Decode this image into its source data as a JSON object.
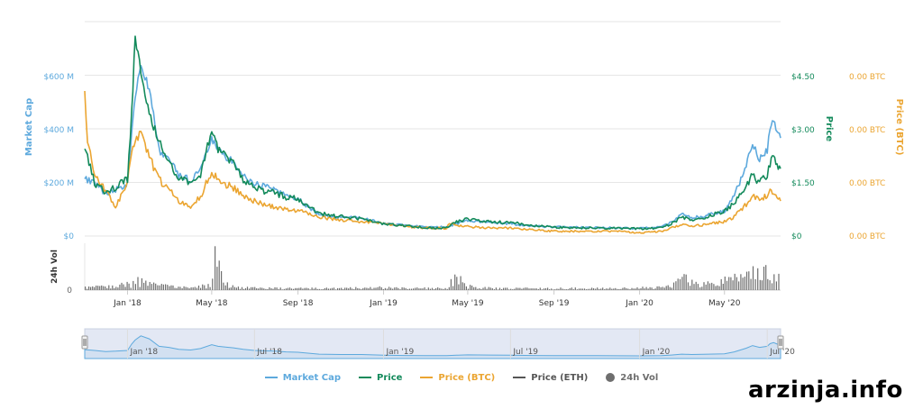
{
  "colors": {
    "market_cap": "#5da9dd",
    "price": "#138a5b",
    "price_btc": "#eba531",
    "price_eth": "#555555",
    "vol": "#6e6e6e",
    "grid": "#e6e6e6",
    "navigator_fill": "#ccd6eb"
  },
  "watermark": "arzinja.info",
  "legend": {
    "market_cap": "Market Cap",
    "price": "Price",
    "price_btc": "Price (BTC)",
    "price_eth": "Price (ETH)",
    "vol": "24h Vol"
  },
  "chart_data": {
    "type": "line",
    "x_range": [
      "2017-11-01",
      "2020-07-20"
    ],
    "x_ticks": [
      "Jan '18",
      "May '18",
      "Sep '18",
      "Jan '19",
      "May '19",
      "Sep '19",
      "Jan '20",
      "May '20"
    ],
    "x_tick_dates": [
      "2018-01-01",
      "2018-05-01",
      "2018-09-01",
      "2019-01-01",
      "2019-05-01",
      "2019-09-01",
      "2020-01-01",
      "2020-05-01"
    ],
    "axes": {
      "market_cap": {
        "label": "Market Cap",
        "range": [
          0,
          700
        ],
        "ticks": [
          0,
          200,
          400,
          600
        ],
        "tick_labels": [
          "$0",
          "$200 M",
          "$400 M",
          "$600 M"
        ]
      },
      "price": {
        "label": "Price",
        "range": [
          0,
          5.25
        ],
        "ticks": [
          0,
          1.5,
          3.0,
          4.5
        ],
        "tick_labels": [
          "$0",
          "$1.50",
          "$3.00",
          "$4.50"
        ]
      },
      "price_btc": {
        "label": "Price (BTC)",
        "tick_labels": [
          "0.00 BTC",
          "0.00 BTC",
          "0.00 BTC",
          "0.00 BTC"
        ]
      },
      "vol": {
        "label": "24h Vol",
        "tick_labels": [
          "0"
        ]
      }
    },
    "navigator_ticks": [
      "Jan '18",
      "Jul '18",
      "Jan '19",
      "Jul '19",
      "Jan '20",
      "Jul '20"
    ],
    "navigator_tick_dates": [
      "2018-01-01",
      "2018-07-01",
      "2019-01-01",
      "2019-07-01",
      "2020-01-01",
      "2020-07-01"
    ],
    "series": [
      {
        "name": "Market Cap",
        "axis": "market_cap",
        "x": [
          "2017-11-01",
          "2017-11-15",
          "2017-12-01",
          "2017-12-15",
          "2018-01-01",
          "2018-01-07",
          "2018-01-12",
          "2018-01-20",
          "2018-02-01",
          "2018-02-15",
          "2018-03-01",
          "2018-03-15",
          "2018-04-01",
          "2018-04-15",
          "2018-05-01",
          "2018-05-10",
          "2018-06-01",
          "2018-06-15",
          "2018-07-01",
          "2018-07-15",
          "2018-08-01",
          "2018-08-15",
          "2018-09-01",
          "2018-10-01",
          "2018-11-01",
          "2018-12-01",
          "2019-01-01",
          "2019-02-01",
          "2019-03-01",
          "2019-04-01",
          "2019-04-15",
          "2019-05-01",
          "2019-06-01",
          "2019-07-01",
          "2019-08-01",
          "2019-09-01",
          "2019-10-01",
          "2019-11-01",
          "2019-12-01",
          "2020-01-01",
          "2020-02-01",
          "2020-02-15",
          "2020-03-01",
          "2020-03-15",
          "2020-04-01",
          "2020-05-01",
          "2020-05-15",
          "2020-06-01",
          "2020-06-10",
          "2020-06-20",
          "2020-07-01",
          "2020-07-05",
          "2020-07-10",
          "2020-07-15",
          "2020-07-20"
        ],
        "values": [
          190,
          170,
          140,
          150,
          170,
          340,
          450,
          560,
          480,
          280,
          250,
          200,
          180,
          220,
          320,
          280,
          240,
          200,
          170,
          160,
          150,
          130,
          120,
          70,
          60,
          60,
          40,
          35,
          30,
          30,
          40,
          50,
          45,
          40,
          33,
          30,
          28,
          28,
          26,
          25,
          30,
          45,
          70,
          60,
          65,
          80,
          130,
          230,
          300,
          250,
          280,
          350,
          380,
          340,
          320
        ]
      },
      {
        "name": "Price",
        "axis": "price",
        "x": [
          "2017-11-01",
          "2017-11-15",
          "2017-12-01",
          "2017-12-15",
          "2018-01-01",
          "2018-01-07",
          "2018-01-12",
          "2018-01-20",
          "2018-02-01",
          "2018-02-15",
          "2018-03-01",
          "2018-03-15",
          "2018-04-01",
          "2018-04-15",
          "2018-05-01",
          "2018-05-10",
          "2018-06-01",
          "2018-06-15",
          "2018-07-01",
          "2018-07-15",
          "2018-08-01",
          "2018-08-15",
          "2018-09-01",
          "2018-10-01",
          "2018-11-01",
          "2018-12-01",
          "2019-01-01",
          "2019-02-01",
          "2019-03-01",
          "2019-04-01",
          "2019-04-15",
          "2019-05-01",
          "2019-06-01",
          "2019-07-01",
          "2019-08-01",
          "2019-09-01",
          "2019-10-01",
          "2019-11-01",
          "2019-12-01",
          "2020-01-01",
          "2020-02-01",
          "2020-02-15",
          "2020-03-01",
          "2020-03-15",
          "2020-04-01",
          "2020-05-01",
          "2020-05-15",
          "2020-06-01",
          "2020-06-10",
          "2020-06-20",
          "2020-07-01",
          "2020-07-05",
          "2020-07-10",
          "2020-07-15",
          "2020-07-20"
        ],
        "values": [
          2.2,
          1.3,
          1.05,
          1.2,
          1.4,
          3.0,
          4.9,
          4.0,
          3.0,
          2.3,
          1.8,
          1.4,
          1.3,
          1.5,
          2.6,
          2.1,
          1.8,
          1.4,
          1.2,
          1.1,
          1.05,
          0.95,
          0.9,
          0.55,
          0.48,
          0.42,
          0.3,
          0.25,
          0.2,
          0.2,
          0.35,
          0.42,
          0.35,
          0.33,
          0.26,
          0.22,
          0.2,
          0.2,
          0.19,
          0.18,
          0.2,
          0.3,
          0.45,
          0.4,
          0.45,
          0.6,
          0.8,
          1.2,
          1.5,
          1.3,
          1.5,
          1.75,
          1.95,
          1.7,
          1.65
        ]
      },
      {
        "name": "Price (BTC)",
        "axis": "price_btc",
        "x": [
          "2017-11-01",
          "2017-11-05",
          "2017-11-15",
          "2017-12-01",
          "2017-12-15",
          "2018-01-01",
          "2018-01-07",
          "2018-01-12",
          "2018-01-20",
          "2018-02-01",
          "2018-02-15",
          "2018-03-01",
          "2018-03-15",
          "2018-04-01",
          "2018-04-15",
          "2018-05-01",
          "2018-05-10",
          "2018-06-01",
          "2018-06-15",
          "2018-07-01",
          "2018-07-15",
          "2018-08-01",
          "2018-08-15",
          "2018-09-01",
          "2018-10-01",
          "2018-11-01",
          "2018-12-01",
          "2019-01-01",
          "2019-02-01",
          "2019-03-01",
          "2019-04-01",
          "2019-04-05",
          "2019-04-15",
          "2019-05-01",
          "2019-06-01",
          "2019-07-01",
          "2019-08-01",
          "2019-09-01",
          "2019-10-01",
          "2019-11-01",
          "2019-12-01",
          "2020-01-01",
          "2020-02-01",
          "2020-02-15",
          "2020-03-01",
          "2020-03-15",
          "2020-04-01",
          "2020-05-01",
          "2020-05-15",
          "2020-06-01",
          "2020-06-10",
          "2020-06-20",
          "2020-07-01",
          "2020-07-05",
          "2020-07-10",
          "2020-07-15",
          "2020-07-20"
        ],
        "values": [
          0.9,
          0.6,
          0.4,
          0.28,
          0.18,
          0.35,
          0.55,
          0.6,
          0.65,
          0.5,
          0.35,
          0.3,
          0.22,
          0.18,
          0.25,
          0.4,
          0.35,
          0.3,
          0.25,
          0.22,
          0.2,
          0.18,
          0.17,
          0.16,
          0.12,
          0.1,
          0.09,
          0.08,
          0.06,
          0.05,
          0.05,
          0.08,
          0.07,
          0.06,
          0.05,
          0.05,
          0.04,
          0.03,
          0.03,
          0.03,
          0.03,
          0.02,
          0.03,
          0.05,
          0.07,
          0.06,
          0.07,
          0.09,
          0.12,
          0.2,
          0.25,
          0.22,
          0.26,
          0.28,
          0.27,
          0.23,
          0.22
        ]
      }
    ],
    "volume": {
      "name": "24h Vol",
      "x": [
        "2017-11-01",
        "2017-12-15",
        "2018-01-05",
        "2018-01-15",
        "2018-02-01",
        "2018-03-01",
        "2018-04-01",
        "2018-04-28",
        "2018-05-05",
        "2018-05-20",
        "2018-06-15",
        "2018-08-01",
        "2018-09-15",
        "2018-11-01",
        "2018-12-15",
        "2019-02-01",
        "2019-04-01",
        "2019-04-12",
        "2019-05-01",
        "2019-06-15",
        "2019-08-01",
        "2019-09-15",
        "2019-11-01",
        "2019-12-15",
        "2020-01-15",
        "2020-02-15",
        "2020-03-01",
        "2020-03-15",
        "2020-04-01",
        "2020-04-15",
        "2020-05-01",
        "2020-05-15",
        "2020-06-01",
        "2020-06-10",
        "2020-06-20",
        "2020-07-01",
        "2020-07-10",
        "2020-07-20"
      ],
      "values": [
        3,
        4,
        8,
        10,
        6,
        4,
        3,
        5,
        45,
        6,
        3,
        2,
        2,
        2,
        3,
        2,
        2,
        16,
        4,
        2,
        2,
        2,
        2,
        2,
        3,
        4,
        14,
        8,
        8,
        9,
        10,
        12,
        14,
        18,
        24,
        22,
        16,
        12
      ]
    }
  }
}
